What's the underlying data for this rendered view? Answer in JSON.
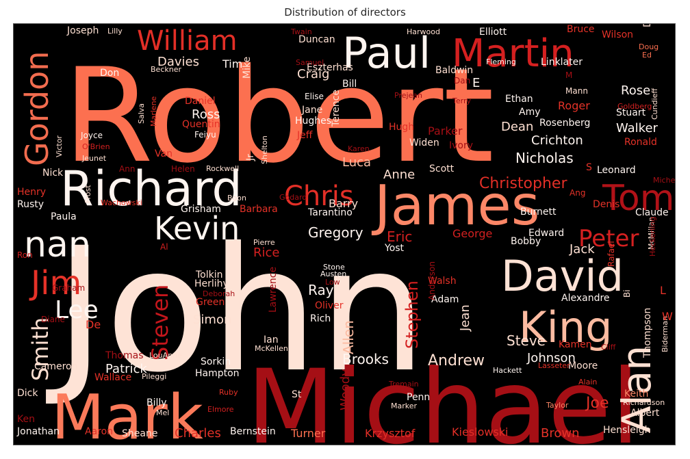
{
  "chart_data": {
    "type": "wordcloud",
    "title": "Distribution of directors",
    "colormap": "Reds",
    "background": "#000000",
    "words": [
      {
        "text": "John",
        "weight": 1.0
      },
      {
        "text": "Robert",
        "weight": 0.95
      },
      {
        "text": "Michael",
        "weight": 0.62
      },
      {
        "text": "Mark",
        "weight": 0.5
      },
      {
        "text": "James",
        "weight": 0.44
      },
      {
        "text": "Richard",
        "weight": 0.4
      },
      {
        "text": "Paul",
        "weight": 0.36
      },
      {
        "text": "David",
        "weight": 0.34
      },
      {
        "text": "King",
        "weight": 0.3
      },
      {
        "text": "Alan",
        "weight": 0.3
      },
      {
        "text": "Gordon",
        "weight": 0.28
      },
      {
        "text": "Martin",
        "weight": 0.28
      },
      {
        "text": "Kevin",
        "weight": 0.27
      },
      {
        "text": "nan",
        "weight": 0.27
      },
      {
        "text": "Tom",
        "weight": 0.27
      },
      {
        "text": "William",
        "weight": 0.25
      },
      {
        "text": "Chris",
        "weight": 0.25
      },
      {
        "text": "Jim",
        "weight": 0.25
      },
      {
        "text": "Lee",
        "weight": 0.22
      },
      {
        "text": "Steven",
        "weight": 0.21
      },
      {
        "text": "Peter",
        "weight": 0.21
      },
      {
        "text": "Smith",
        "weight": 0.2
      },
      {
        "text": "Christopher",
        "weight": 0.14
      },
      {
        "text": "Stephen",
        "weight": 0.13
      },
      {
        "text": "Brooks",
        "weight": 0.12
      },
      {
        "text": "Andrew",
        "weight": 0.12
      },
      {
        "text": "Charles",
        "weight": 0.11
      },
      {
        "text": "Nicholas",
        "weight": 0.11
      },
      {
        "text": "Crichton",
        "weight": 0.1
      },
      {
        "text": "Gregory",
        "weight": 0.1
      },
      {
        "text": "Johnson",
        "weight": 0.1
      },
      {
        "text": "Patrick",
        "weight": 0.1
      },
      {
        "text": "Ross",
        "weight": 0.1
      },
      {
        "text": "Simon",
        "weight": 0.1
      },
      {
        "text": "Eric",
        "weight": 0.1
      },
      {
        "text": "Steve",
        "weight": 0.1
      },
      {
        "text": "Luca",
        "weight": 0.09
      },
      {
        "text": "Walker",
        "weight": 0.09
      },
      {
        "text": "Davies",
        "weight": 0.09
      },
      {
        "text": "Ray",
        "weight": 0.09
      },
      {
        "text": "Krzysztof",
        "weight": 0.09
      },
      {
        "text": "Kieslowski",
        "weight": 0.09
      },
      {
        "text": "Allen",
        "weight": 0.09
      },
      {
        "text": "Woody",
        "weight": 0.08
      },
      {
        "text": "Brown",
        "weight": 0.09
      },
      {
        "text": "Barry",
        "weight": 0.08
      },
      {
        "text": "Turner",
        "weight": 0.08
      },
      {
        "text": "Rice",
        "weight": 0.08
      },
      {
        "text": "Jack",
        "weight": 0.08
      },
      {
        "text": "Rose",
        "weight": 0.08
      },
      {
        "text": "Dean",
        "weight": 0.08
      },
      {
        "text": "Anne",
        "weight": 0.08
      },
      {
        "text": "Craig",
        "weight": 0.08
      },
      {
        "text": "George",
        "weight": 0.08
      },
      {
        "text": "Roger",
        "weight": 0.08
      },
      {
        "text": "Parker",
        "weight": 0.08
      },
      {
        "text": "Jean",
        "weight": 0.08
      },
      {
        "text": "Joe",
        "weight": 0.08
      },
      {
        "text": "Elliott",
        "weight": 0.07
      },
      {
        "text": "Duncan",
        "weight": 0.07
      },
      {
        "text": "Eszterhas",
        "weight": 0.07
      },
      {
        "text": "Tim",
        "weight": 0.07
      },
      {
        "text": "Linklater",
        "weight": 0.07
      },
      {
        "text": "Hughes",
        "weight": 0.07
      },
      {
        "text": "Oliver",
        "weight": 0.07
      },
      {
        "text": "Green",
        "weight": 0.07
      },
      {
        "text": "Lawrence",
        "weight": 0.07
      },
      {
        "text": "Alexandre",
        "weight": 0.07
      },
      {
        "text": "Edward",
        "weight": 0.07
      },
      {
        "text": "Burnett",
        "weight": 0.07
      },
      {
        "text": "Keith",
        "weight": 0.07
      },
      {
        "text": "Albert",
        "weight": 0.07
      },
      {
        "text": "Hensleigh",
        "weight": 0.07
      },
      {
        "text": "Bernstein",
        "weight": 0.07
      },
      {
        "text": "Hampton",
        "weight": 0.07
      },
      {
        "text": "Sorkin",
        "weight": 0.07
      },
      {
        "text": "Billy",
        "weight": 0.07
      },
      {
        "text": "Jonathan",
        "weight": 0.07
      },
      {
        "text": "Cameron",
        "weight": 0.07
      },
      {
        "text": "Wallace",
        "weight": 0.07
      },
      {
        "text": "Tarantino",
        "weight": 0.07
      },
      {
        "text": "Barbara",
        "weight": 0.07
      },
      {
        "text": "Paula",
        "weight": 0.07
      },
      {
        "text": "Rusty",
        "weight": 0.07
      },
      {
        "text": "Henry",
        "weight": 0.07
      },
      {
        "text": "Nick",
        "weight": 0.07
      },
      {
        "text": "Ivory",
        "weight": 0.07
      },
      {
        "text": "Widen",
        "weight": 0.07
      },
      {
        "text": "Hugh",
        "weight": 0.07
      },
      {
        "text": "Jeff",
        "weight": 0.07
      },
      {
        "text": "Jane",
        "weight": 0.07
      },
      {
        "text": "Quentin",
        "weight": 0.07
      },
      {
        "text": "Daniel",
        "weight": 0.07
      },
      {
        "text": "Stuart",
        "weight": 0.07
      },
      {
        "text": "Rosenberg",
        "weight": 0.07
      },
      {
        "text": "Ethan",
        "weight": 0.07
      },
      {
        "text": "Amy",
        "weight": 0.07
      },
      {
        "text": "Moore",
        "weight": 0.07
      },
      {
        "text": "Adam",
        "weight": 0.07
      },
      {
        "text": "Walsh",
        "weight": 0.07
      },
      {
        "text": "Yost",
        "weight": 0.07
      },
      {
        "text": "Herlihy",
        "weight": 0.07
      },
      {
        "text": "Tolkin",
        "weight": 0.07
      },
      {
        "text": "Rich",
        "weight": 0.07
      },
      {
        "text": "Penn",
        "weight": 0.07
      },
      {
        "text": "Aaron",
        "weight": 0.07
      },
      {
        "text": "Sheane",
        "weight": 0.07
      },
      {
        "text": "Thomas",
        "weight": 0.07
      },
      {
        "text": "Thompson",
        "weight": 0.07
      },
      {
        "text": "Bobby",
        "weight": 0.07
      },
      {
        "text": "Davis",
        "weight": 0.07
      },
      {
        "text": "Baldwin",
        "weight": 0.07
      },
      {
        "text": "Scott",
        "weight": 0.07
      },
      {
        "text": "Ronald",
        "weight": 0.07
      },
      {
        "text": "Claude",
        "weight": 0.07
      },
      {
        "text": "Leonard",
        "weight": 0.07
      },
      {
        "text": "Denis",
        "weight": 0.07
      },
      {
        "text": "Kamen",
        "weight": 0.07
      },
      {
        "text": "Bruce",
        "weight": 0.07
      },
      {
        "text": "Wilson",
        "weight": 0.07
      },
      {
        "text": "Joseph",
        "weight": 0.07
      },
      {
        "text": "Don",
        "weight": 0.07
      },
      {
        "text": "Beckner",
        "weight": 0.07
      },
      {
        "text": "Mike",
        "weight": 0.07
      },
      {
        "text": "Terence",
        "weight": 0.07
      },
      {
        "text": "Bill",
        "weight": 0.07
      },
      {
        "text": "Elise",
        "weight": 0.07
      },
      {
        "text": "Ian",
        "weight": 0.07
      },
      {
        "text": "McKellen",
        "weight": 0.07
      },
      {
        "text": "LouAnne",
        "weight": 0.07
      },
      {
        "text": "Pileggi",
        "weight": 0.07
      },
      {
        "text": "Dick",
        "weight": 0.07
      },
      {
        "text": "Ken",
        "weight": 0.07
      },
      {
        "text": "Mel",
        "weight": 0.07
      },
      {
        "text": "Elmore",
        "weight": 0.07
      },
      {
        "text": "Ruby",
        "weight": 0.07
      },
      {
        "text": "St",
        "weight": 0.07
      },
      {
        "text": "Marker",
        "weight": 0.07
      },
      {
        "text": "Tremain",
        "weight": 0.07
      },
      {
        "text": "Taylor",
        "weight": 0.07
      },
      {
        "text": "Richardson",
        "weight": 0.07
      },
      {
        "text": "Biderman",
        "weight": 0.07
      },
      {
        "text": "Lasseter",
        "weight": 0.07
      },
      {
        "text": "Hackett",
        "weight": 0.07
      },
      {
        "text": "Cliff",
        "weight": 0.07
      },
      {
        "text": "Alain",
        "weight": 0.07
      },
      {
        "text": "Anderson",
        "weight": 0.07
      },
      {
        "text": "Stone",
        "weight": 0.07
      },
      {
        "text": "Austen",
        "weight": 0.07
      },
      {
        "text": "Low",
        "weight": 0.07
      },
      {
        "text": "Deborah",
        "weight": 0.07
      },
      {
        "text": "Graham",
        "weight": 0.07
      },
      {
        "text": "Diane",
        "weight": 0.07
      },
      {
        "text": "Ron",
        "weight": 0.07
      },
      {
        "text": "Pierre",
        "weight": 0.07
      },
      {
        "text": "Boon",
        "weight": 0.07
      },
      {
        "text": "Godard",
        "weight": 0.07
      },
      {
        "text": "Grisham",
        "weight": 0.07
      },
      {
        "text": "Rockwell",
        "weight": 0.07
      },
      {
        "text": "Helen",
        "weight": 0.07
      },
      {
        "text": "Wachowski",
        "weight": 0.07
      },
      {
        "text": "Frost",
        "weight": 0.07
      },
      {
        "text": "Ann",
        "weight": 0.07
      },
      {
        "text": "Van",
        "weight": 0.07
      },
      {
        "text": "Jeunet",
        "weight": 0.07
      },
      {
        "text": "Joyce",
        "weight": 0.07
      },
      {
        "text": "O'Brien",
        "weight": 0.07
      },
      {
        "text": "Victor",
        "weight": 0.07
      },
      {
        "text": "Feiyu",
        "weight": 0.07
      },
      {
        "text": "Salva",
        "weight": 0.07
      },
      {
        "text": "Marlene",
        "weight": 0.07
      },
      {
        "text": "Shelton",
        "weight": 0.07
      },
      {
        "text": "Karen",
        "weight": 0.07
      },
      {
        "text": "Prejean",
        "weight": 0.07
      },
      {
        "text": "Terry",
        "weight": 0.07
      },
      {
        "text": "Goldberg",
        "weight": 0.07
      },
      {
        "text": "Cundieff",
        "weight": 0.07
      },
      {
        "text": "Mann",
        "weight": 0.07
      },
      {
        "text": "Fleming",
        "weight": 0.07
      },
      {
        "text": "Harwood",
        "weight": 0.07
      },
      {
        "text": "Twain",
        "weight": 0.07
      },
      {
        "text": "Lilly",
        "weight": 0.07
      },
      {
        "text": "Samuel",
        "weight": 0.07
      },
      {
        "text": "Doug",
        "weight": 0.07
      },
      {
        "text": "Ed",
        "weight": 0.07
      },
      {
        "text": "Dan",
        "weight": 0.07
      },
      {
        "text": "E",
        "weight": 0.07
      },
      {
        "text": "Ang",
        "weight": 0.07
      },
      {
        "text": "Michell",
        "weight": 0.07
      },
      {
        "text": "McMillan",
        "weight": 0.07
      },
      {
        "text": "Heckerling",
        "weight": 0.07
      },
      {
        "text": "Rafael",
        "weight": 0.07
      },
      {
        "text": "Al",
        "weight": 0.07
      },
      {
        "text": "De",
        "weight": 0.07
      },
      {
        "text": "Jr",
        "weight": 0.07
      },
      {
        "text": "M",
        "weight": 0.07
      },
      {
        "text": "S",
        "weight": 0.07
      },
      {
        "text": "L",
        "weight": 0.07
      },
      {
        "text": "W",
        "weight": 0.07
      },
      {
        "text": "Bi",
        "weight": 0.07
      }
    ]
  }
}
